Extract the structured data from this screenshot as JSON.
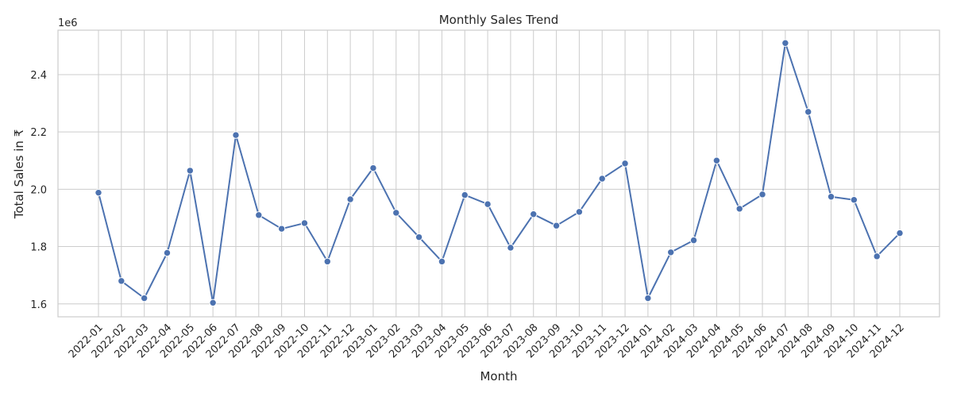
{
  "chart_data": {
    "type": "line",
    "title": "Monthly Sales Trend",
    "xlabel": "Month",
    "ylabel": "Total Sales in ₹",
    "y_offset_label": "1e6",
    "ylim": [
      1.555,
      2.555
    ],
    "y_ticks": [
      1.6,
      1.8,
      2.0,
      2.2,
      2.4
    ],
    "y_tick_labels": [
      "1.6",
      "1.8",
      "2.0",
      "2.2",
      "2.4"
    ],
    "grid": true,
    "color": "#4c72b0",
    "categories": [
      "2022-01",
      "2022-02",
      "2022-03",
      "2022-04",
      "2022-05",
      "2022-06",
      "2022-07",
      "2022-08",
      "2022-09",
      "2022-10",
      "2022-11",
      "2022-12",
      "2023-01",
      "2023-02",
      "2023-03",
      "2023-04",
      "2023-05",
      "2023-06",
      "2023-07",
      "2023-08",
      "2023-09",
      "2023-10",
      "2023-11",
      "2023-12",
      "2024-01",
      "2024-02",
      "2024-03",
      "2024-04",
      "2024-05",
      "2024-06",
      "2024-07",
      "2024-08",
      "2024-09",
      "2024-10",
      "2024-11",
      "2024-12"
    ],
    "values": [
      1.988,
      1.68,
      1.62,
      1.778,
      2.065,
      1.604,
      2.189,
      1.91,
      1.862,
      1.882,
      1.748,
      1.965,
      2.074,
      1.918,
      1.833,
      1.748,
      1.98,
      1.948,
      1.796,
      1.913,
      1.873,
      1.921,
      2.037,
      2.09,
      1.62,
      1.78,
      1.822,
      2.1,
      1.932,
      1.982,
      2.51,
      2.27,
      1.974,
      1.963,
      1.766,
      1.847
    ]
  }
}
